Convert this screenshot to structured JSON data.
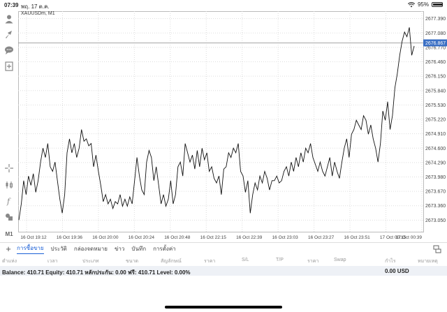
{
  "status": {
    "time": "07:39",
    "date": "พฤ. 17 ต.ค.",
    "battery": "95%",
    "battery_level": 0.95
  },
  "chart": {
    "symbol_label": "XAUUSDm, M1",
    "current_price": "2676.867"
  },
  "chart_data": {
    "type": "line",
    "title": "XAUUSDm, M1",
    "y_ticks": [
      "2677.390",
      "2677.080",
      "2676.770",
      "2676.460",
      "2676.150",
      "2675.840",
      "2675.530",
      "2675.220",
      "2674.910",
      "2674.600",
      "2674.290",
      "2673.980",
      "2673.670",
      "2673.360",
      "2673.050"
    ],
    "x_ticks": [
      "16 Oct 19:12",
      "16 Oct 19:36",
      "16 Oct 20:00",
      "16 Oct 20:24",
      "16 Oct 20:48",
      "16 Oct 22:15",
      "16 Oct 22:39",
      "16 Oct 23:03",
      "16 Oct 23:27",
      "16 Oct 23:51",
      "17 Oct 00:15",
      "17 Oct 00:39"
    ],
    "ylim": [
      2672.8,
      2677.55
    ],
    "current_price": 2676.867,
    "values": [
      2673.05,
      2673.4,
      2673.9,
      2673.6,
      2674.0,
      2673.8,
      2674.05,
      2673.65,
      2673.9,
      2674.3,
      2674.6,
      2674.4,
      2674.7,
      2674.2,
      2674.1,
      2674.3,
      2673.9,
      2673.5,
      2673.2,
      2673.6,
      2674.5,
      2674.8,
      2674.5,
      2674.7,
      2674.4,
      2674.6,
      2675.0,
      2674.75,
      2674.8,
      2674.65,
      2674.7,
      2674.2,
      2674.45,
      2674.1,
      2673.8,
      2673.45,
      2673.6,
      2673.4,
      2673.5,
      2673.3,
      2673.45,
      2673.4,
      2673.6,
      2673.35,
      2673.5,
      2673.35,
      2673.55,
      2673.4,
      2673.9,
      2674.4,
      2674.0,
      2673.7,
      2673.6,
      2674.3,
      2674.55,
      2674.4,
      2673.9,
      2674.2,
      2673.8,
      2673.4,
      2673.6,
      2673.35,
      2673.5,
      2673.9,
      2673.4,
      2673.6,
      2674.2,
      2674.3,
      2674.0,
      2674.7,
      2674.5,
      2674.3,
      2674.45,
      2674.15,
      2674.55,
      2674.2,
      2674.6,
      2674.35,
      2674.5,
      2674.1,
      2674.2,
      2673.95,
      2673.85,
      2674.0,
      2673.6,
      2674.15,
      2674.2,
      2674.5,
      2674.4,
      2674.6,
      2674.5,
      2674.7,
      2674.1,
      2674.0,
      2673.65,
      2673.9,
      2673.2,
      2673.6,
      2673.85,
      2673.7,
      2674.0,
      2673.85,
      2674.1,
      2673.95,
      2673.7,
      2673.9,
      2673.9,
      2674.0,
      2673.85,
      2673.9,
      2674.1,
      2674.2,
      2674.0,
      2674.3,
      2674.1,
      2674.4,
      2674.2,
      2674.5,
      2674.3,
      2674.6,
      2674.5,
      2674.7,
      2674.4,
      2674.25,
      2674.1,
      2674.3,
      2674.1,
      2674.0,
      2674.2,
      2674.4,
      2674.0,
      2674.3,
      2674.1,
      2673.95,
      2674.3,
      2674.6,
      2674.8,
      2674.4,
      2674.9,
      2675.0,
      2675.2,
      2675.1,
      2675.0,
      2675.3,
      2675.2,
      2674.9,
      2675.1,
      2674.8,
      2674.6,
      2674.3,
      2674.7,
      2675.4,
      2675.2,
      2675.6,
      2675.0,
      2675.3,
      2675.9,
      2676.2,
      2676.6,
      2676.9,
      2677.1,
      2677.0,
      2677.2,
      2676.6,
      2676.8
    ],
    "grid": true
  },
  "tabs": [
    "การซื้อขาย",
    "ประวัติ",
    "กล่องจดหมาย",
    "ข่าว",
    "บันทึก",
    "การตั้งค่า"
  ],
  "columns": [
    "ตำแห่ง",
    "เวลา",
    "ประเภท",
    "ขนาด",
    "สัญลักษณ์",
    "ราคา",
    "S/L",
    "T/P",
    "ราคา",
    "Swap",
    "กำไร",
    "หมายเหตุ"
  ],
  "balance": {
    "line": "Balance: 410.71 Equity: 410.71 หลักประกัน: 0.00 ฟรี: 410.71 Level: 0.00%",
    "amount": "0.00  USD"
  },
  "left_tools": {
    "timeframe": "M1"
  }
}
